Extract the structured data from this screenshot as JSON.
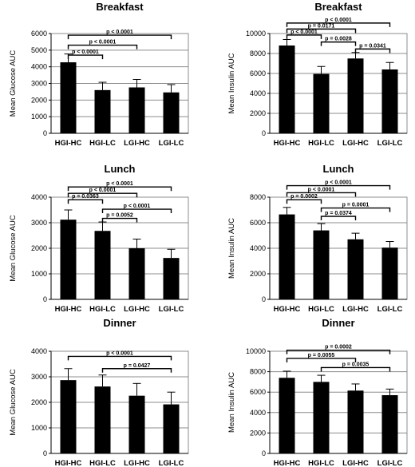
{
  "chart_data": [
    {
      "type": "bar",
      "title": "Breakfast",
      "ylabel": "Mean Glucose AUC",
      "categories": [
        "HGI-HC",
        "HGI-LC",
        "LGI-HC",
        "LGI-LC"
      ],
      "values": [
        4270,
        2600,
        2760,
        2460
      ],
      "errors": [
        500,
        470,
        480,
        470
      ],
      "ylim": [
        0,
        6000
      ],
      "yticks": [
        "0",
        "1000",
        "2000",
        "3000",
        "4000",
        "5000",
        "6000"
      ],
      "grid": true,
      "comparisons": [
        {
          "from": 0,
          "to": 3,
          "y": 5900,
          "label": "p < 0.0001"
        },
        {
          "from": 0,
          "to": 2,
          "y": 5300,
          "label": "p < 0.0001"
        },
        {
          "from": 0,
          "to": 1,
          "y": 4700,
          "label": "p < 0.0001"
        }
      ]
    },
    {
      "type": "bar",
      "title": "Breakfast",
      "ylabel": "Mean Insulin AUC",
      "categories": [
        "HGI-HC",
        "HGI-LC",
        "LGI-HC",
        "LGI-LC"
      ],
      "values": [
        8800,
        5950,
        7500,
        6400
      ],
      "errors": [
        600,
        750,
        600,
        700
      ],
      "ylim": [
        0,
        10000
      ],
      "yticks": [
        "0",
        "2000",
        "4000",
        "6000",
        "8000",
        "10000"
      ],
      "grid": true,
      "comparisons": [
        {
          "from": 0,
          "to": 3,
          "y": 11050,
          "label": "p < 0.0001"
        },
        {
          "from": 0,
          "to": 2,
          "y": 10450,
          "label": "p = 0.0171"
        },
        {
          "from": 0,
          "to": 1,
          "y": 9850,
          "label": "p < 0.0001"
        },
        {
          "from": 1,
          "to": 2,
          "y": 9150,
          "label": "p = 0.0028"
        },
        {
          "from": 2,
          "to": 3,
          "y": 8450,
          "label": "p = 0.0341"
        }
      ]
    },
    {
      "type": "bar",
      "title": "Lunch",
      "ylabel": "Mean Glucose AUC",
      "categories": [
        "HGI-HC",
        "HGI-LC",
        "LGI-HC",
        "LGI-LC"
      ],
      "values": [
        3120,
        2680,
        2000,
        1620
      ],
      "errors": [
        380,
        350,
        360,
        340
      ],
      "ylim": [
        0,
        4000
      ],
      "yticks": [
        "0",
        "1000",
        "2000",
        "3000",
        "4000"
      ],
      "grid": true,
      "comparisons": [
        {
          "from": 0,
          "to": 3,
          "y": 4400,
          "label": "p < 0.0001"
        },
        {
          "from": 0,
          "to": 2,
          "y": 4150,
          "label": "p < 0.0001"
        },
        {
          "from": 0,
          "to": 1,
          "y": 3900,
          "label": "p = 0.0363"
        },
        {
          "from": 1,
          "to": 3,
          "y": 3530,
          "label": "p < 0.0001"
        },
        {
          "from": 1,
          "to": 2,
          "y": 3170,
          "label": "p = 0.0052"
        }
      ]
    },
    {
      "type": "bar",
      "title": "Lunch",
      "ylabel": "Mean Insulin AUC",
      "categories": [
        "HGI-HC",
        "HGI-LC",
        "LGI-HC",
        "LGI-LC"
      ],
      "values": [
        6650,
        5400,
        4700,
        4050
      ],
      "errors": [
        550,
        530,
        480,
        480
      ],
      "ylim": [
        0,
        8000
      ],
      "yticks": [
        "0",
        "2000",
        "4000",
        "6000",
        "8000"
      ],
      "grid": true,
      "comparisons": [
        {
          "from": 0,
          "to": 3,
          "y": 8900,
          "label": "p < 0.0001"
        },
        {
          "from": 0,
          "to": 2,
          "y": 8350,
          "label": "p < 0.0001"
        },
        {
          "from": 0,
          "to": 1,
          "y": 7800,
          "label": "p = 0.0002"
        },
        {
          "from": 1,
          "to": 3,
          "y": 7150,
          "label": "p = 0.0001"
        },
        {
          "from": 1,
          "to": 2,
          "y": 6500,
          "label": "p = 0.0374"
        }
      ]
    },
    {
      "type": "bar",
      "title": "Dinner",
      "ylabel": "Mean Glucose AUC",
      "categories": [
        "HGI-HC",
        "HGI-LC",
        "LGI-HC",
        "LGI-LC"
      ],
      "values": [
        2870,
        2620,
        2260,
        1920
      ],
      "errors": [
        450,
        450,
        480,
        480
      ],
      "ylim": [
        0,
        4000
      ],
      "yticks": [
        "0",
        "1000",
        "2000",
        "3000",
        "4000"
      ],
      "grid": true,
      "comparisons": [
        {
          "from": 0,
          "to": 3,
          "y": 3800,
          "label": "p < 0.0001"
        },
        {
          "from": 1,
          "to": 3,
          "y": 3320,
          "label": "p = 0.0427"
        }
      ]
    },
    {
      "type": "bar",
      "title": "Dinner",
      "ylabel": "Mean Insulin AUC",
      "categories": [
        "HGI-HC",
        "HGI-LC",
        "LGI-HC",
        "LGI-LC"
      ],
      "values": [
        7400,
        7000,
        6150,
        5700
      ],
      "errors": [
        650,
        650,
        650,
        600
      ],
      "ylim": [
        0,
        10000
      ],
      "yticks": [
        "0",
        "2000",
        "4000",
        "6000",
        "8000",
        "10000"
      ],
      "grid": true,
      "comparisons": [
        {
          "from": 0,
          "to": 3,
          "y": 10100,
          "label": "p = 0.0002"
        },
        {
          "from": 0,
          "to": 2,
          "y": 9300,
          "label": "p = 0.0055"
        },
        {
          "from": 1,
          "to": 3,
          "y": 8400,
          "label": "p = 0.0035"
        }
      ]
    }
  ]
}
